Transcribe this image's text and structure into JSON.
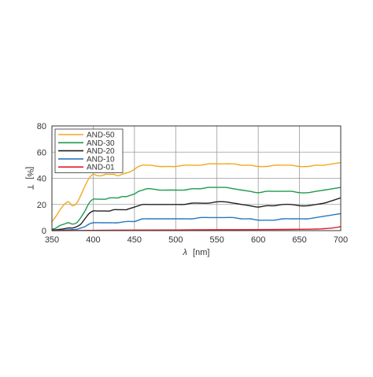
{
  "chart_data": {
    "type": "line",
    "title": "",
    "xlabel_symbol": "λ",
    "xlabel_unit": "[nm]",
    "ylabel_symbol": "T",
    "ylabel_unit": "[%]",
    "xlim": [
      350,
      700
    ],
    "ylim": [
      0,
      80
    ],
    "x_ticks": [
      350,
      400,
      450,
      500,
      550,
      600,
      650,
      700
    ],
    "y_ticks": [
      0,
      20,
      40,
      60,
      80
    ],
    "grid": true,
    "legend_position": "top-left",
    "series": [
      {
        "name": "AND-50",
        "color": "#f0a81e",
        "points": [
          [
            350,
            7
          ],
          [
            355,
            11
          ],
          [
            360,
            16
          ],
          [
            365,
            20
          ],
          [
            370,
            22
          ],
          [
            375,
            19
          ],
          [
            380,
            21
          ],
          [
            385,
            27
          ],
          [
            390,
            34
          ],
          [
            395,
            40
          ],
          [
            400,
            43
          ],
          [
            405,
            42
          ],
          [
            410,
            42
          ],
          [
            415,
            43
          ],
          [
            420,
            43
          ],
          [
            425,
            43
          ],
          [
            430,
            42
          ],
          [
            435,
            43
          ],
          [
            440,
            44
          ],
          [
            445,
            45
          ],
          [
            450,
            47
          ],
          [
            455,
            49
          ],
          [
            460,
            50
          ],
          [
            465,
            50
          ],
          [
            470,
            50
          ],
          [
            480,
            49
          ],
          [
            490,
            49
          ],
          [
            500,
            49
          ],
          [
            510,
            50
          ],
          [
            520,
            50
          ],
          [
            530,
            50
          ],
          [
            540,
            51
          ],
          [
            550,
            51
          ],
          [
            560,
            51
          ],
          [
            570,
            51
          ],
          [
            580,
            50
          ],
          [
            590,
            50
          ],
          [
            600,
            49
          ],
          [
            610,
            49
          ],
          [
            620,
            50
          ],
          [
            630,
            50
          ],
          [
            640,
            50
          ],
          [
            650,
            49
          ],
          [
            660,
            49
          ],
          [
            670,
            50
          ],
          [
            680,
            50
          ],
          [
            690,
            51
          ],
          [
            700,
            52
          ]
        ]
      },
      {
        "name": "AND-30",
        "color": "#1e9a4e",
        "points": [
          [
            350,
            1
          ],
          [
            355,
            2
          ],
          [
            360,
            4
          ],
          [
            365,
            5
          ],
          [
            370,
            6
          ],
          [
            375,
            5
          ],
          [
            380,
            6
          ],
          [
            385,
            10
          ],
          [
            390,
            15
          ],
          [
            395,
            21
          ],
          [
            400,
            24
          ],
          [
            405,
            24
          ],
          [
            410,
            24
          ],
          [
            415,
            24
          ],
          [
            420,
            25
          ],
          [
            425,
            25
          ],
          [
            430,
            25
          ],
          [
            435,
            26
          ],
          [
            440,
            26
          ],
          [
            445,
            27
          ],
          [
            450,
            28
          ],
          [
            455,
            30
          ],
          [
            460,
            31
          ],
          [
            465,
            32
          ],
          [
            470,
            32
          ],
          [
            480,
            31
          ],
          [
            490,
            31
          ],
          [
            500,
            31
          ],
          [
            510,
            31
          ],
          [
            520,
            32
          ],
          [
            530,
            32
          ],
          [
            540,
            33
          ],
          [
            550,
            33
          ],
          [
            560,
            33
          ],
          [
            570,
            32
          ],
          [
            580,
            31
          ],
          [
            590,
            30
          ],
          [
            600,
            29
          ],
          [
            610,
            30
          ],
          [
            620,
            30
          ],
          [
            630,
            30
          ],
          [
            640,
            30
          ],
          [
            650,
            29
          ],
          [
            660,
            29
          ],
          [
            670,
            30
          ],
          [
            680,
            31
          ],
          [
            690,
            32
          ],
          [
            700,
            33
          ]
        ]
      },
      {
        "name": "AND-20",
        "color": "#231f20",
        "points": [
          [
            350,
            0.4
          ],
          [
            360,
            1
          ],
          [
            370,
            2
          ],
          [
            375,
            2
          ],
          [
            380,
            3
          ],
          [
            385,
            5
          ],
          [
            390,
            9
          ],
          [
            395,
            13
          ],
          [
            400,
            15
          ],
          [
            405,
            15
          ],
          [
            410,
            15
          ],
          [
            415,
            15
          ],
          [
            420,
            15
          ],
          [
            425,
            16
          ],
          [
            430,
            16
          ],
          [
            435,
            16
          ],
          [
            440,
            16
          ],
          [
            445,
            17
          ],
          [
            450,
            18
          ],
          [
            455,
            19
          ],
          [
            460,
            20
          ],
          [
            465,
            20
          ],
          [
            470,
            20
          ],
          [
            480,
            20
          ],
          [
            490,
            20
          ],
          [
            500,
            20
          ],
          [
            510,
            20
          ],
          [
            520,
            21
          ],
          [
            530,
            21
          ],
          [
            540,
            21
          ],
          [
            550,
            22
          ],
          [
            560,
            22
          ],
          [
            570,
            21
          ],
          [
            580,
            20
          ],
          [
            590,
            19
          ],
          [
            600,
            18
          ],
          [
            610,
            19
          ],
          [
            620,
            19
          ],
          [
            630,
            20
          ],
          [
            640,
            20
          ],
          [
            650,
            19
          ],
          [
            660,
            19
          ],
          [
            670,
            20
          ],
          [
            680,
            21
          ],
          [
            690,
            23
          ],
          [
            700,
            25
          ]
        ]
      },
      {
        "name": "AND-10",
        "color": "#2878c0",
        "points": [
          [
            350,
            0.1
          ],
          [
            360,
            0.3
          ],
          [
            370,
            0.6
          ],
          [
            380,
            1
          ],
          [
            385,
            2
          ],
          [
            390,
            3
          ],
          [
            395,
            5
          ],
          [
            400,
            6
          ],
          [
            410,
            6
          ],
          [
            420,
            6
          ],
          [
            430,
            6
          ],
          [
            440,
            7
          ],
          [
            445,
            7
          ],
          [
            450,
            7
          ],
          [
            455,
            8
          ],
          [
            460,
            9
          ],
          [
            465,
            9
          ],
          [
            470,
            9
          ],
          [
            480,
            9
          ],
          [
            490,
            9
          ],
          [
            500,
            9
          ],
          [
            510,
            9
          ],
          [
            520,
            9
          ],
          [
            530,
            10
          ],
          [
            540,
            10
          ],
          [
            550,
            10
          ],
          [
            560,
            10
          ],
          [
            570,
            10
          ],
          [
            580,
            9
          ],
          [
            590,
            9
          ],
          [
            600,
            8
          ],
          [
            610,
            8
          ],
          [
            620,
            8
          ],
          [
            630,
            9
          ],
          [
            640,
            9
          ],
          [
            650,
            9
          ],
          [
            660,
            9
          ],
          [
            670,
            10
          ],
          [
            680,
            11
          ],
          [
            690,
            12
          ],
          [
            700,
            13
          ]
        ]
      },
      {
        "name": "AND-01",
        "color": "#e0202c",
        "points": [
          [
            350,
            0
          ],
          [
            400,
            0.2
          ],
          [
            450,
            0.4
          ],
          [
            500,
            0.5
          ],
          [
            550,
            0.7
          ],
          [
            600,
            0.8
          ],
          [
            630,
            0.9
          ],
          [
            650,
            1
          ],
          [
            670,
            1.2
          ],
          [
            680,
            1.5
          ],
          [
            690,
            2
          ],
          [
            700,
            3
          ]
        ]
      }
    ]
  }
}
